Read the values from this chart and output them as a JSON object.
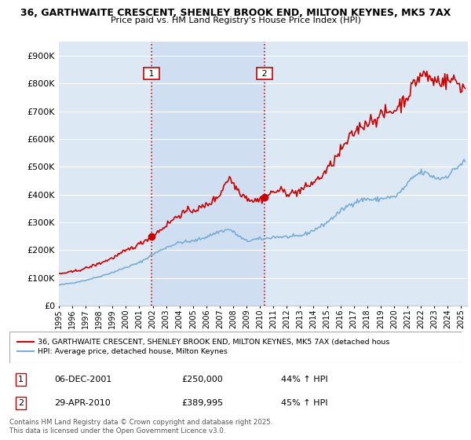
{
  "title_line1": "36, GARTHWAITE CRESCENT, SHENLEY BROOK END, MILTON KEYNES, MK5 7AX",
  "title_line2": "Price paid vs. HM Land Registry's House Price Index (HPI)",
  "bg_color": "#dce9f5",
  "shade_color": "#ccddf0",
  "red_line_color": "#cc0000",
  "blue_line_color": "#7aadd4",
  "dashed_line_color": "#cc0000",
  "purchase1_date": 2001.92,
  "purchase2_date": 2010.33,
  "purchase1_value": 250000,
  "purchase2_value": 389995,
  "legend_label_red": "36, GARTHWAITE CRESCENT, SHENLEY BROOK END, MILTON KEYNES, MK5 7AX (detached hous",
  "legend_label_blue": "HPI: Average price, detached house, Milton Keynes",
  "annotation1": [
    "1",
    "06-DEC-2001",
    "£250,000",
    "44% ↑ HPI"
  ],
  "annotation2": [
    "2",
    "29-APR-2010",
    "£389,995",
    "45% ↑ HPI"
  ],
  "footer": "Contains HM Land Registry data © Crown copyright and database right 2025.\nThis data is licensed under the Open Government Licence v3.0.",
  "ylim_max": 950000,
  "xmin": 1995.0,
  "xmax": 2025.5,
  "grid_color": "#ffffff",
  "label_fontsize": 8,
  "tick_fontsize": 7
}
